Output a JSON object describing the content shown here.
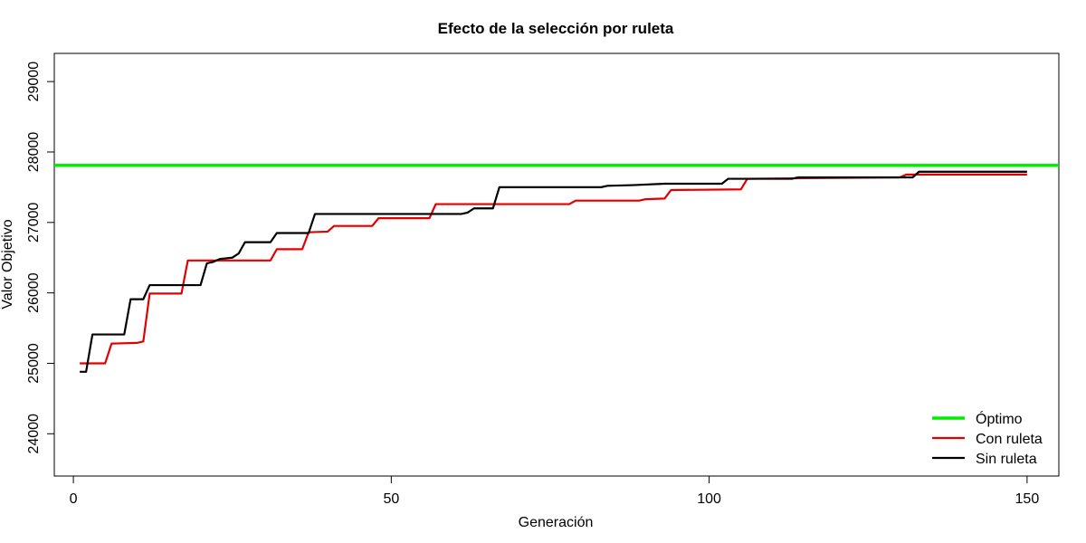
{
  "chart_data": {
    "type": "line",
    "title": "Efecto de la selección por ruleta",
    "xlabel": "Generación",
    "ylabel": "Valor Objetivo",
    "xlim": [
      -3,
      155
    ],
    "ylim": [
      23400,
      29400
    ],
    "xticks": [
      0,
      50,
      100,
      150
    ],
    "yticks": [
      24000,
      25000,
      26000,
      27000,
      28000,
      29000
    ],
    "grid": false,
    "legend_position": "bottom-right",
    "series": [
      {
        "name": "Óptimo",
        "color": "#00ee00",
        "style": "hline",
        "y": 27810
      },
      {
        "name": "Con ruleta",
        "color": "#e00000",
        "style": "line",
        "points": [
          [
            1,
            25000
          ],
          [
            5,
            25000
          ],
          [
            6,
            25280
          ],
          [
            10,
            25290
          ],
          [
            11,
            25310
          ],
          [
            12,
            25990
          ],
          [
            17,
            25990
          ],
          [
            18,
            26460
          ],
          [
            31,
            26460
          ],
          [
            32,
            26620
          ],
          [
            36,
            26620
          ],
          [
            37,
            26860
          ],
          [
            40,
            26870
          ],
          [
            41,
            26950
          ],
          [
            47,
            26950
          ],
          [
            48,
            27060
          ],
          [
            56,
            27060
          ],
          [
            57,
            27260
          ],
          [
            78,
            27260
          ],
          [
            79,
            27310
          ],
          [
            89,
            27310
          ],
          [
            90,
            27330
          ],
          [
            93,
            27340
          ],
          [
            94,
            27460
          ],
          [
            105,
            27470
          ],
          [
            106,
            27620
          ],
          [
            130,
            27640
          ],
          [
            131,
            27680
          ],
          [
            150,
            27680
          ]
        ]
      },
      {
        "name": "Sin ruleta",
        "color": "#000000",
        "style": "line",
        "points": [
          [
            1,
            24880
          ],
          [
            2,
            24880
          ],
          [
            3,
            25410
          ],
          [
            8,
            25410
          ],
          [
            9,
            25910
          ],
          [
            11,
            25910
          ],
          [
            12,
            26110
          ],
          [
            20,
            26110
          ],
          [
            21,
            26420
          ],
          [
            22,
            26440
          ],
          [
            23,
            26480
          ],
          [
            25,
            26500
          ],
          [
            26,
            26560
          ],
          [
            27,
            26720
          ],
          [
            31,
            26720
          ],
          [
            32,
            26850
          ],
          [
            37,
            26850
          ],
          [
            38,
            27120
          ],
          [
            61,
            27120
          ],
          [
            62,
            27140
          ],
          [
            63,
            27200
          ],
          [
            66,
            27200
          ],
          [
            67,
            27500
          ],
          [
            83,
            27500
          ],
          [
            84,
            27520
          ],
          [
            88,
            27530
          ],
          [
            93,
            27550
          ],
          [
            102,
            27550
          ],
          [
            103,
            27620
          ],
          [
            113,
            27620
          ],
          [
            114,
            27640
          ],
          [
            132,
            27640
          ],
          [
            133,
            27720
          ],
          [
            150,
            27720
          ]
        ]
      }
    ]
  }
}
